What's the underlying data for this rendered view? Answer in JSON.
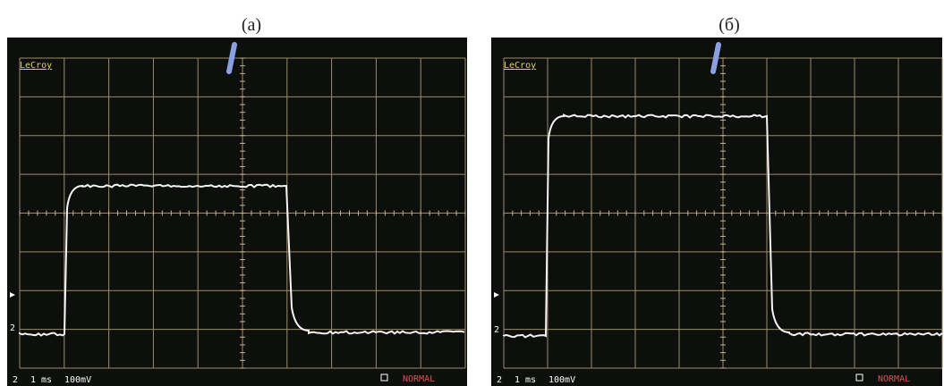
{
  "panels": [
    {
      "caption": "(a)",
      "brand": "LeCroy",
      "channel": "2",
      "timebase": "1 ms",
      "scale": "100mV",
      "mode": "NORMAL"
    },
    {
      "caption": "(б)",
      "brand": "LeCroy",
      "channel": "2",
      "timebase": "1 ms",
      "scale": "100mV",
      "mode": "NORMAL"
    }
  ]
}
